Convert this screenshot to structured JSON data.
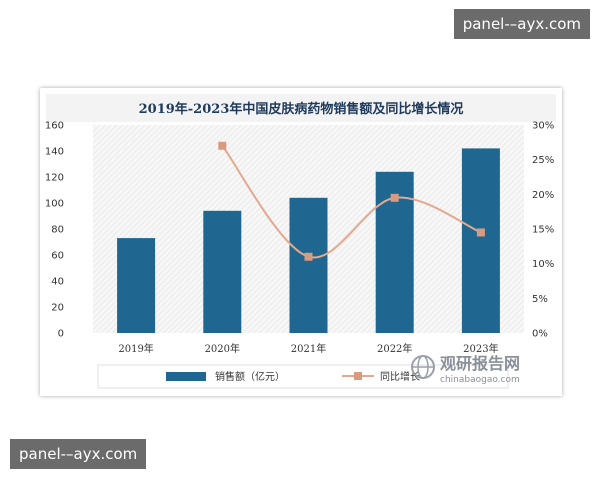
{
  "watermark": {
    "top": "panel-–ayx.com",
    "bottom": "panel-–ayx.com"
  },
  "logo": {
    "name": "观研报告网",
    "domain": "chinabaogao.com"
  },
  "chart_data": {
    "type": "bar",
    "title": "2019年-2023年中国皮肤病药物销售额及同比增长情况",
    "categories": [
      "2019年",
      "2020年",
      "2021年",
      "2022年",
      "2023年"
    ],
    "series": [
      {
        "name": "销售额（亿元）",
        "type": "bar",
        "axis": "left",
        "values": [
          73,
          94,
          104,
          124,
          142
        ]
      },
      {
        "name": "同比增长",
        "type": "line",
        "axis": "right",
        "values": [
          null,
          27,
          11,
          19.5,
          14.5
        ]
      }
    ],
    "y_left": {
      "lim": [
        0,
        160
      ],
      "ticks": [
        0,
        20,
        40,
        60,
        80,
        100,
        120,
        140,
        160
      ]
    },
    "y_right": {
      "lim": [
        0,
        30
      ],
      "ticks": [
        "0%",
        "5%",
        "10%",
        "15%",
        "20%",
        "25%",
        "30%"
      ]
    },
    "legend_position": "bottom",
    "colors": {
      "bar": "#1f6690",
      "line": "#e3a98f",
      "marker": "#d99b80",
      "title": "#1f3a5a"
    }
  }
}
